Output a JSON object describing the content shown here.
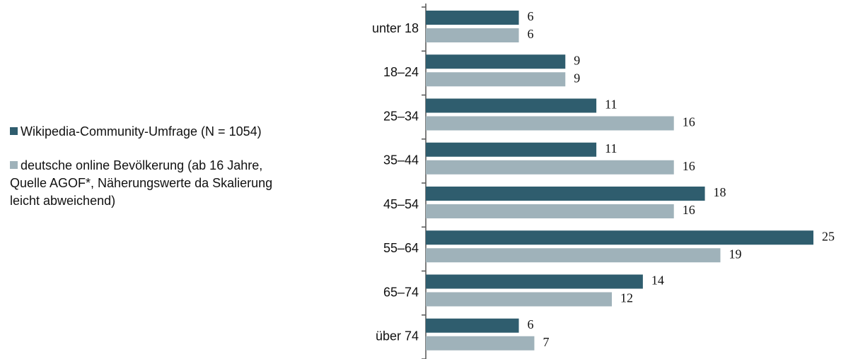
{
  "chart_data": {
    "type": "bar",
    "orientation": "horizontal",
    "categories": [
      "unter 18",
      "18–24",
      "25–34",
      "35–44",
      "45–54",
      "55–64",
      "65–74",
      "über 74"
    ],
    "series": [
      {
        "name": "Wikipedia-Community-Umfrage (N = 1054)",
        "color": "#2f5d6e",
        "values": [
          6,
          9,
          11,
          11,
          18,
          25,
          14,
          6
        ]
      },
      {
        "name": "deutsche online Bevölkerung (ab 16 Jahre, Quelle AGOF*, Näherungswerte da Skalierung leicht abweichend)",
        "color": "#9fb2ba",
        "values": [
          6,
          9,
          16,
          16,
          16,
          19,
          12,
          7
        ]
      }
    ],
    "legend": "left"
  }
}
